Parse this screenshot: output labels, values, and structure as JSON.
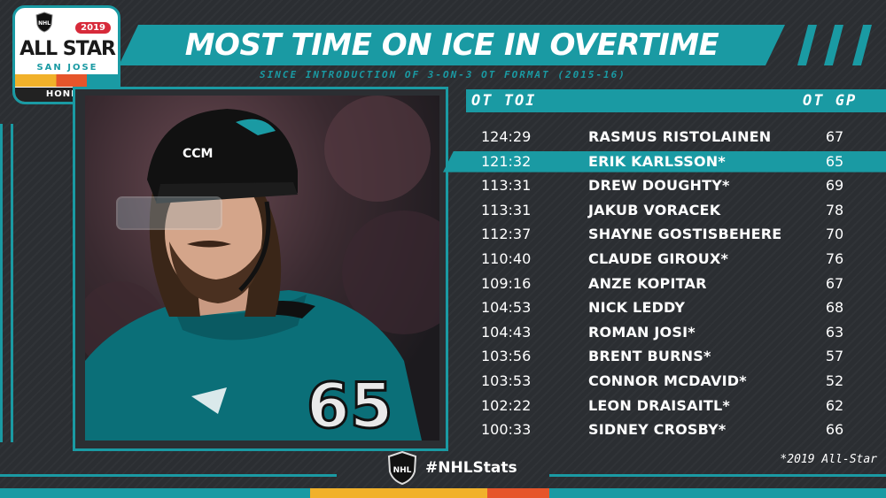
{
  "branding": {
    "league_badge": "NHL",
    "event_year": "2019",
    "event_name": "ALL STAR",
    "event_city": "SAN JOSE",
    "sponsor": "HONDA",
    "hashtag": "#NHLStats"
  },
  "header": {
    "title": "MOST TIME ON ICE IN OVERTIME",
    "subtitle": "SINCE INTRODUCTION OF 3-ON-3 OT FORMAT (2015-16)"
  },
  "table": {
    "col_toi": "OT TOI",
    "col_gp": "OT GP",
    "rows": [
      {
        "toi": "124:29",
        "name": "RASMUS RISTOLAINEN",
        "gp": "67"
      },
      {
        "toi": "121:32",
        "name": "ERIK KARLSSON*",
        "gp": "65"
      },
      {
        "toi": "113:31",
        "name": "DREW DOUGHTY*",
        "gp": "69"
      },
      {
        "toi": "113:31",
        "name": "JAKUB VORACEK",
        "gp": "78"
      },
      {
        "toi": "112:37",
        "name": "SHAYNE GOSTISBEHERE",
        "gp": "70"
      },
      {
        "toi": "110:40",
        "name": "CLAUDE GIROUX*",
        "gp": "76"
      },
      {
        "toi": "109:16",
        "name": "ANZE KOPITAR",
        "gp": "67"
      },
      {
        "toi": "104:53",
        "name": "NICK LEDDY",
        "gp": "68"
      },
      {
        "toi": "104:43",
        "name": "ROMAN JOSI*",
        "gp": "63"
      },
      {
        "toi": "103:56",
        "name": "BRENT BURNS*",
        "gp": "57"
      },
      {
        "toi": "103:53",
        "name": "CONNOR MCDAVID*",
        "gp": "52"
      },
      {
        "toi": "102:22",
        "name": "LEON DRAISAITL*",
        "gp": "62"
      },
      {
        "toi": "100:33",
        "name": "SIDNEY CROSBY*",
        "gp": "66"
      }
    ],
    "highlight_row": 1
  },
  "footnote": "*2019 All-Star",
  "photo": {
    "jersey_number": "65",
    "helmet_brand": "CCM"
  },
  "colors": {
    "accent": "#1a9aa3",
    "background": "#2b2e32",
    "text": "#ffffff"
  }
}
